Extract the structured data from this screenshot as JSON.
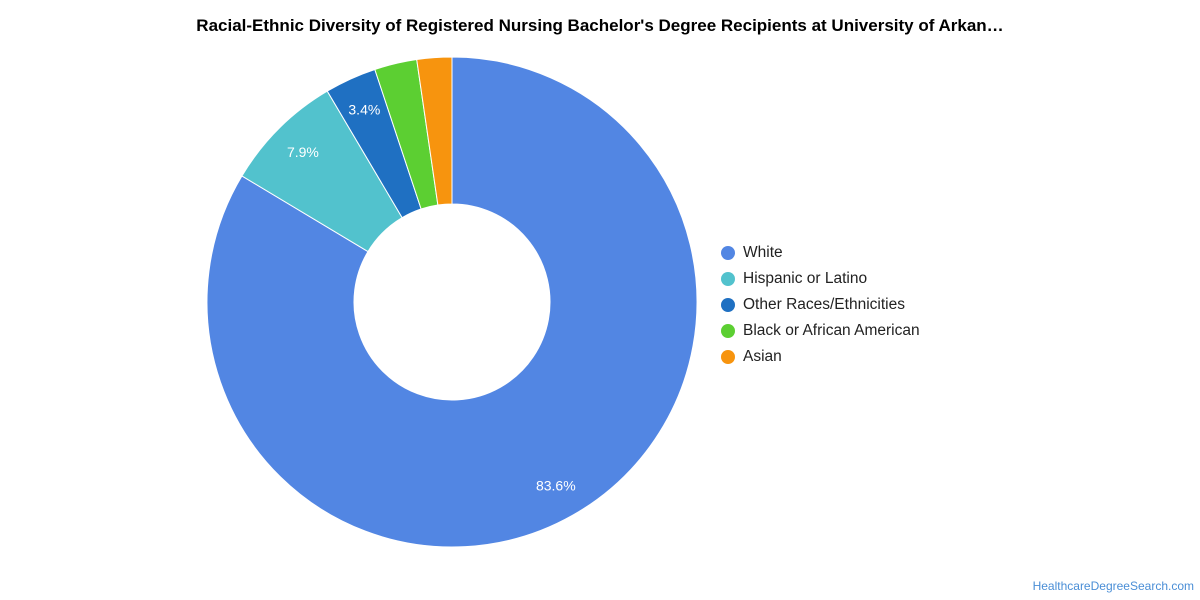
{
  "chart_data": {
    "type": "pie",
    "variant": "donut",
    "title": "Racial-Ethnic Diversity of Registered Nursing Bachelor's Degree Recipients at University of Arkan…",
    "categories": [
      "White",
      "Hispanic or Latino",
      "Other Races/Ethnicities",
      "Black or African American",
      "Asian"
    ],
    "values": [
      83.6,
      7.9,
      3.4,
      2.8,
      2.3
    ],
    "value_labels": [
      "83.6%",
      "7.9%",
      "3.4%",
      "",
      ""
    ],
    "colors": [
      "#5286e3",
      "#52c2cd",
      "#1f70c2",
      "#5ccf32",
      "#f7940e"
    ],
    "legend_position": "right"
  },
  "source_text": "HealthcareDegreeSearch.com"
}
